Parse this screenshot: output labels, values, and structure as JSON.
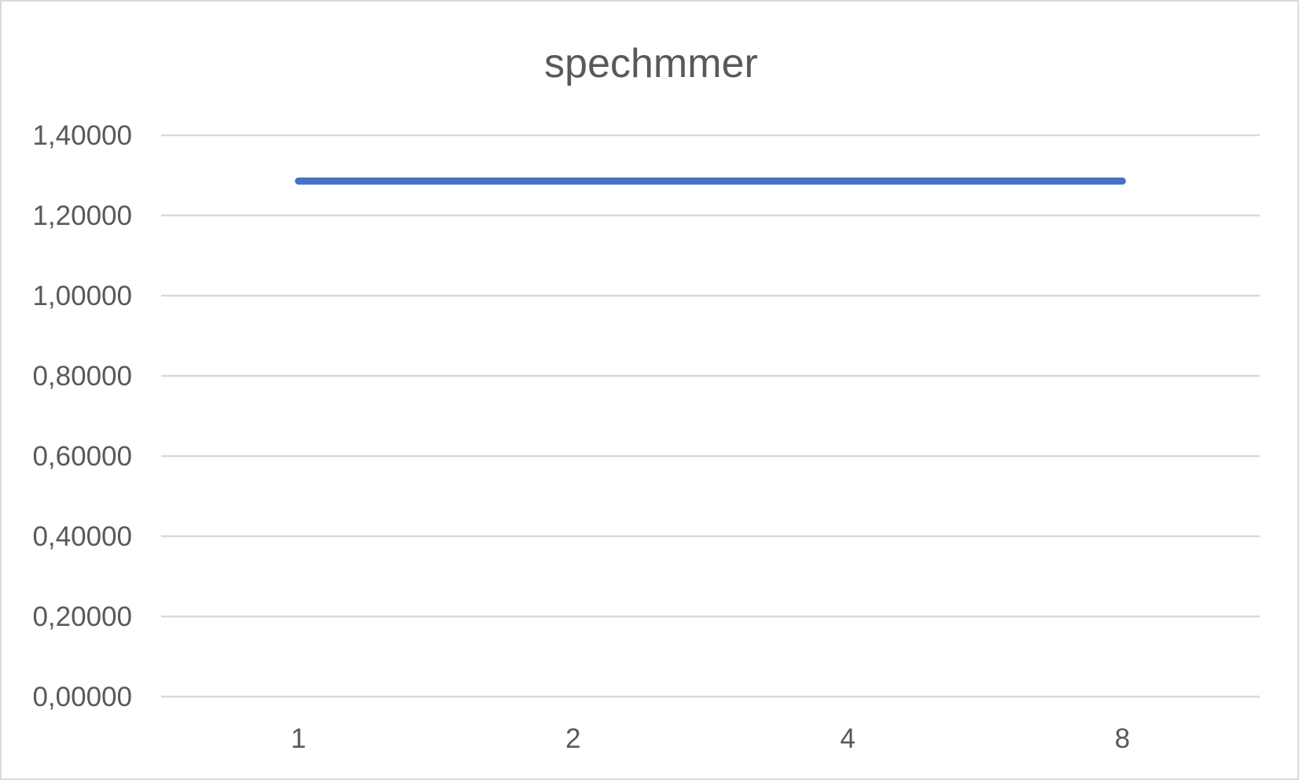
{
  "chart_data": {
    "type": "line",
    "title": "spechmmer",
    "xlabel": "",
    "ylabel": "",
    "categories": [
      "1",
      "2",
      "4",
      "8"
    ],
    "series": [
      {
        "values": [
          1.28571,
          1.28571,
          1.28571,
          1.28571
        ]
      }
    ],
    "ylim": [
      0,
      1.4
    ],
    "yticks": [
      0,
      0.2,
      0.4,
      0.6,
      0.8,
      1.0,
      1.2,
      1.4
    ],
    "ytick_labels": [
      "0,00000",
      "0,20000",
      "0,40000",
      "0,60000",
      "0,80000",
      "1,00000",
      "1,20000",
      "1,40000"
    ],
    "grid": true,
    "legend": "none",
    "colors": {
      "series": "#4472c4",
      "grid": "#d9d9d9",
      "text": "#595959"
    }
  }
}
